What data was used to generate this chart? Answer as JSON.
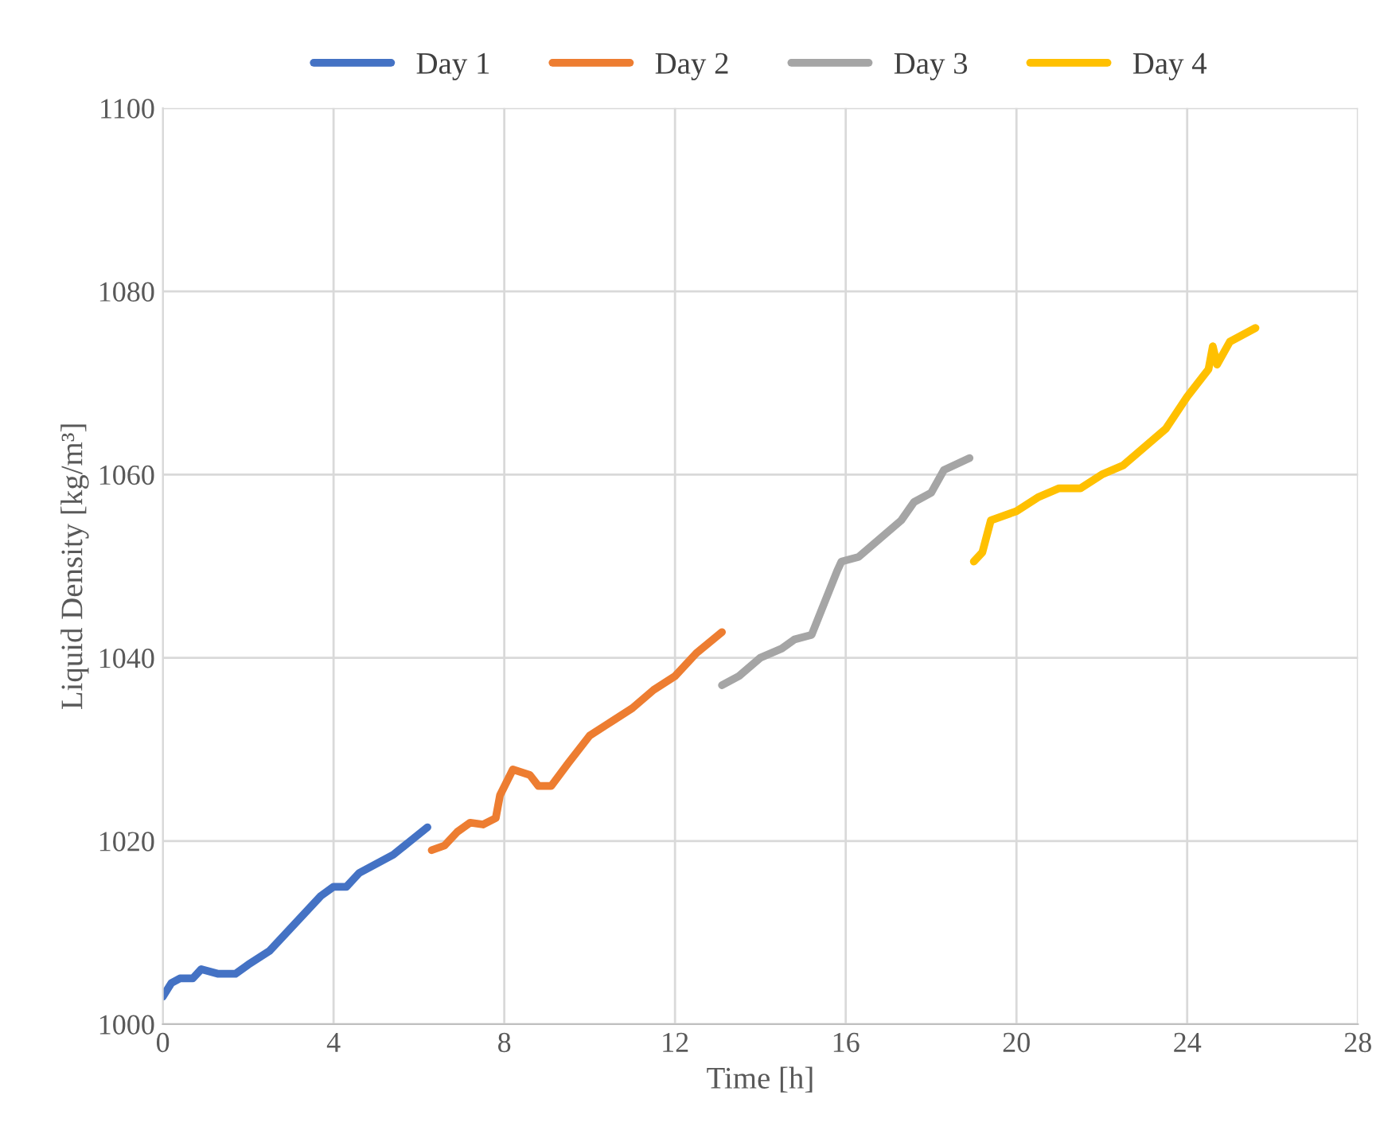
{
  "chart_data": {
    "type": "line",
    "xlabel": "Time [h]",
    "ylabel": "Liquid Density [kg/m³]",
    "xlim": [
      0,
      28
    ],
    "ylim": [
      1000,
      1100
    ],
    "xticks": [
      0,
      4,
      8,
      12,
      16,
      20,
      24,
      28
    ],
    "yticks": [
      1000,
      1020,
      1040,
      1060,
      1080,
      1100
    ],
    "grid": true,
    "legend": "top",
    "marker": "none",
    "line_style": "solid",
    "series": [
      {
        "name": "Day 1",
        "color": "#4472c4",
        "x": [
          0,
          0.2,
          0.4,
          0.7,
          0.9,
          1.3,
          1.7,
          2,
          2.5,
          3,
          3.4,
          3.7,
          4,
          4.3,
          4.6,
          5,
          5.4,
          5.8,
          6.2
        ],
        "values": [
          1003,
          1004.5,
          1005,
          1005,
          1006,
          1005.5,
          1005.5,
          1006.5,
          1008,
          1010.5,
          1012.5,
          1014,
          1015,
          1015,
          1016.5,
          1017.5,
          1018.5,
          1020,
          1021.5
        ]
      },
      {
        "name": "Day 2",
        "color": "#ed7d31",
        "x": [
          6.3,
          6.6,
          6.9,
          7.2,
          7.5,
          7.8,
          7.9,
          8.2,
          8.6,
          8.8,
          9.1,
          9.5,
          10,
          10.5,
          11,
          11.5,
          12,
          12.5,
          13.1
        ],
        "values": [
          1019,
          1019.5,
          1021,
          1022,
          1021.8,
          1022.5,
          1025,
          1027.8,
          1027.2,
          1026,
          1026,
          1028.5,
          1031.5,
          1033,
          1034.5,
          1036.5,
          1038,
          1040.5,
          1042.8
        ]
      },
      {
        "name": "Day 3",
        "color": "#a5a5a5",
        "x": [
          13.1,
          13.5,
          14,
          14.5,
          14.8,
          15.2,
          15.5,
          15.8,
          15.9,
          16.3,
          16.8,
          17.3,
          17.6,
          18,
          18.3,
          18.9
        ],
        "values": [
          1037,
          1038,
          1040,
          1041,
          1042,
          1042.5,
          1046,
          1049.5,
          1050.5,
          1051,
          1053,
          1055,
          1057,
          1058,
          1060.5,
          1061.8
        ]
      },
      {
        "name": "Day 4",
        "color": "#ffc000",
        "x": [
          19,
          19.2,
          19.4,
          19.7,
          20,
          20.5,
          21,
          21.5,
          22,
          22.5,
          23,
          23.5,
          24,
          24.5,
          24.6,
          24.7,
          25,
          25.6
        ],
        "values": [
          1050.5,
          1051.5,
          1055,
          1055.5,
          1056,
          1057.5,
          1058.5,
          1058.5,
          1060,
          1061,
          1063,
          1065,
          1068.5,
          1071.5,
          1074,
          1072,
          1074.5,
          1076
        ]
      }
    ]
  }
}
